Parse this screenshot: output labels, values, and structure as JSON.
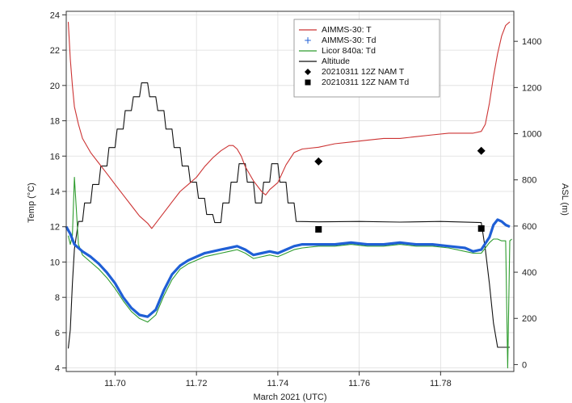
{
  "chart_data": {
    "type": "line",
    "xlabel": "March 2021 (UTC)",
    "ylabel": "Temp (°C)",
    "y2label": "ASL (m)",
    "xlim": [
      11.688,
      11.798
    ],
    "ylim": [
      3.8,
      24.2
    ],
    "y2lim": [
      -30,
      1530
    ],
    "xticks": [
      "11.70",
      "11.72",
      "11.74",
      "11.76",
      "11.78"
    ],
    "xtick_values": [
      11.7,
      11.72,
      11.74,
      11.76,
      11.78
    ],
    "yticks": [
      "4",
      "6",
      "8",
      "10",
      "12",
      "14",
      "16",
      "18",
      "20",
      "22",
      "24"
    ],
    "ytick_values": [
      4,
      6,
      8,
      10,
      12,
      14,
      16,
      18,
      20,
      22,
      24
    ],
    "y2ticks": [
      "0",
      "200",
      "400",
      "600",
      "800",
      "1000",
      "1200",
      "1400"
    ],
    "y2tick_values": [
      0,
      200,
      400,
      600,
      800,
      1000,
      1200,
      1400
    ],
    "grid": true,
    "legend_position": "top-center",
    "series": [
      {
        "name": "AIMMS-30: T",
        "axis": "left",
        "style": "line",
        "color": "#cc3333",
        "x": [
          11.6885,
          11.689,
          11.6895,
          11.69,
          11.691,
          11.692,
          11.694,
          11.696,
          11.698,
          11.7,
          11.702,
          11.704,
          11.706,
          11.708,
          11.709,
          11.71,
          11.712,
          11.714,
          11.716,
          11.718,
          11.72,
          11.722,
          11.724,
          11.726,
          11.728,
          11.729,
          11.73,
          11.731,
          11.732,
          11.734,
          11.736,
          11.737,
          11.738,
          11.74,
          11.742,
          11.744,
          11.746,
          11.75,
          11.754,
          11.758,
          11.762,
          11.766,
          11.77,
          11.774,
          11.778,
          11.782,
          11.786,
          11.788,
          11.79,
          11.791,
          11.792,
          11.793,
          11.794,
          11.795,
          11.796,
          11.797
        ],
        "y": [
          23.6,
          21.5,
          20.0,
          18.8,
          17.8,
          17.0,
          16.2,
          15.6,
          15.0,
          14.4,
          13.8,
          13.2,
          12.6,
          12.2,
          11.9,
          12.2,
          12.8,
          13.4,
          14.0,
          14.4,
          14.8,
          15.4,
          15.9,
          16.3,
          16.6,
          16.6,
          16.4,
          16.0,
          15.4,
          14.6,
          14.0,
          13.8,
          14.1,
          14.5,
          15.5,
          16.2,
          16.4,
          16.5,
          16.7,
          16.8,
          16.9,
          17.0,
          17.0,
          17.1,
          17.2,
          17.3,
          17.3,
          17.3,
          17.4,
          17.8,
          19.0,
          20.5,
          21.8,
          22.8,
          23.4,
          23.6
        ]
      },
      {
        "name": "AIMMS-30: Td",
        "axis": "left",
        "style": "line",
        "color": "#1f5fd6",
        "x": [
          11.688,
          11.689,
          11.69,
          11.692,
          11.694,
          11.696,
          11.698,
          11.7,
          11.702,
          11.704,
          11.706,
          11.708,
          11.71,
          11.712,
          11.714,
          11.716,
          11.718,
          11.72,
          11.722,
          11.724,
          11.726,
          11.728,
          11.73,
          11.732,
          11.734,
          11.736,
          11.738,
          11.74,
          11.742,
          11.744,
          11.746,
          11.75,
          11.754,
          11.758,
          11.762,
          11.766,
          11.77,
          11.774,
          11.778,
          11.782,
          11.786,
          11.788,
          11.79,
          11.792,
          11.793,
          11.794,
          11.795,
          11.796,
          11.797
        ],
        "y": [
          12.0,
          11.6,
          11.0,
          10.6,
          10.3,
          9.9,
          9.4,
          8.8,
          8.0,
          7.4,
          7.0,
          6.9,
          7.3,
          8.4,
          9.3,
          9.8,
          10.1,
          10.3,
          10.5,
          10.6,
          10.7,
          10.8,
          10.9,
          10.7,
          10.4,
          10.5,
          10.6,
          10.5,
          10.7,
          10.9,
          11.0,
          11.0,
          11.0,
          11.1,
          11.0,
          11.0,
          11.1,
          11.0,
          11.0,
          10.9,
          10.8,
          10.6,
          10.7,
          11.4,
          12.1,
          12.4,
          12.3,
          12.1,
          12.0
        ]
      },
      {
        "name": "Licor 840a: Td",
        "axis": "left",
        "style": "line",
        "color": "#2e9c2e",
        "x": [
          11.6885,
          11.689,
          11.6895,
          11.69,
          11.691,
          11.692,
          11.694,
          11.696,
          11.698,
          11.7,
          11.702,
          11.704,
          11.706,
          11.708,
          11.71,
          11.712,
          11.714,
          11.716,
          11.718,
          11.72,
          11.722,
          11.724,
          11.726,
          11.728,
          11.73,
          11.732,
          11.734,
          11.736,
          11.738,
          11.74,
          11.742,
          11.744,
          11.746,
          11.75,
          11.754,
          11.758,
          11.762,
          11.766,
          11.77,
          11.774,
          11.778,
          11.782,
          11.786,
          11.788,
          11.79,
          11.792,
          11.793,
          11.794,
          11.795,
          11.796,
          11.7965,
          11.797,
          11.7975
        ],
        "y": [
          11.5,
          11.0,
          11.5,
          14.8,
          11.0,
          10.4,
          10.0,
          9.6,
          9.1,
          8.5,
          7.8,
          7.2,
          6.8,
          6.6,
          7.0,
          8.1,
          9.0,
          9.6,
          9.9,
          10.1,
          10.3,
          10.4,
          10.5,
          10.6,
          10.7,
          10.5,
          10.2,
          10.3,
          10.4,
          10.3,
          10.5,
          10.7,
          10.8,
          10.9,
          10.9,
          11.0,
          10.9,
          10.9,
          11.0,
          10.9,
          10.9,
          10.8,
          10.6,
          10.5,
          10.5,
          11.1,
          11.3,
          11.3,
          11.2,
          11.2,
          4.0,
          11.2,
          11.3
        ]
      },
      {
        "name": "Altitude",
        "axis": "right",
        "style": "line",
        "color": "#111111",
        "x": [
          11.6885,
          11.689,
          11.6895,
          11.69,
          11.6905,
          11.691,
          11.692,
          11.6925,
          11.694,
          11.6945,
          11.696,
          11.6965,
          11.698,
          11.6985,
          11.7,
          11.7005,
          11.702,
          11.7025,
          11.704,
          11.7045,
          11.706,
          11.7065,
          11.708,
          11.7085,
          11.71,
          11.7105,
          11.712,
          11.7125,
          11.714,
          11.7145,
          11.716,
          11.7165,
          11.718,
          11.7185,
          11.72,
          11.7205,
          11.722,
          11.7225,
          11.724,
          11.7245,
          11.726,
          11.7265,
          11.728,
          11.7285,
          11.73,
          11.7305,
          11.732,
          11.7325,
          11.734,
          11.7345,
          11.736,
          11.7365,
          11.738,
          11.7385,
          11.74,
          11.7405,
          11.742,
          11.7425,
          11.744,
          11.7445,
          11.75,
          11.76,
          11.77,
          11.78,
          11.79,
          11.791,
          11.792,
          11.793,
          11.794,
          11.795,
          11.796,
          11.797
        ],
        "y": [
          70,
          150,
          350,
          500,
          560,
          620,
          620,
          700,
          700,
          780,
          780,
          860,
          860,
          940,
          940,
          1020,
          1020,
          1100,
          1100,
          1160,
          1160,
          1220,
          1220,
          1160,
          1160,
          1100,
          1100,
          1020,
          1020,
          940,
          940,
          860,
          860,
          790,
          790,
          720,
          720,
          650,
          650,
          615,
          615,
          700,
          700,
          790,
          790,
          870,
          870,
          790,
          790,
          700,
          700,
          790,
          790,
          870,
          870,
          790,
          790,
          700,
          700,
          620,
          618,
          620,
          617,
          620,
          615,
          500,
          350,
          180,
          75,
          75,
          75,
          75
        ]
      },
      {
        "name": "20210311 12Z NAM T",
        "axis": "left",
        "style": "marker",
        "marker": "diamond",
        "color": "#000000",
        "x": [
          11.75,
          11.79
        ],
        "y": [
          15.7,
          16.3
        ]
      },
      {
        "name": "20210311 12Z NAM Td",
        "axis": "left",
        "style": "marker",
        "marker": "square",
        "color": "#000000",
        "x": [
          11.75,
          11.79
        ],
        "y": [
          11.85,
          11.9
        ]
      }
    ]
  }
}
